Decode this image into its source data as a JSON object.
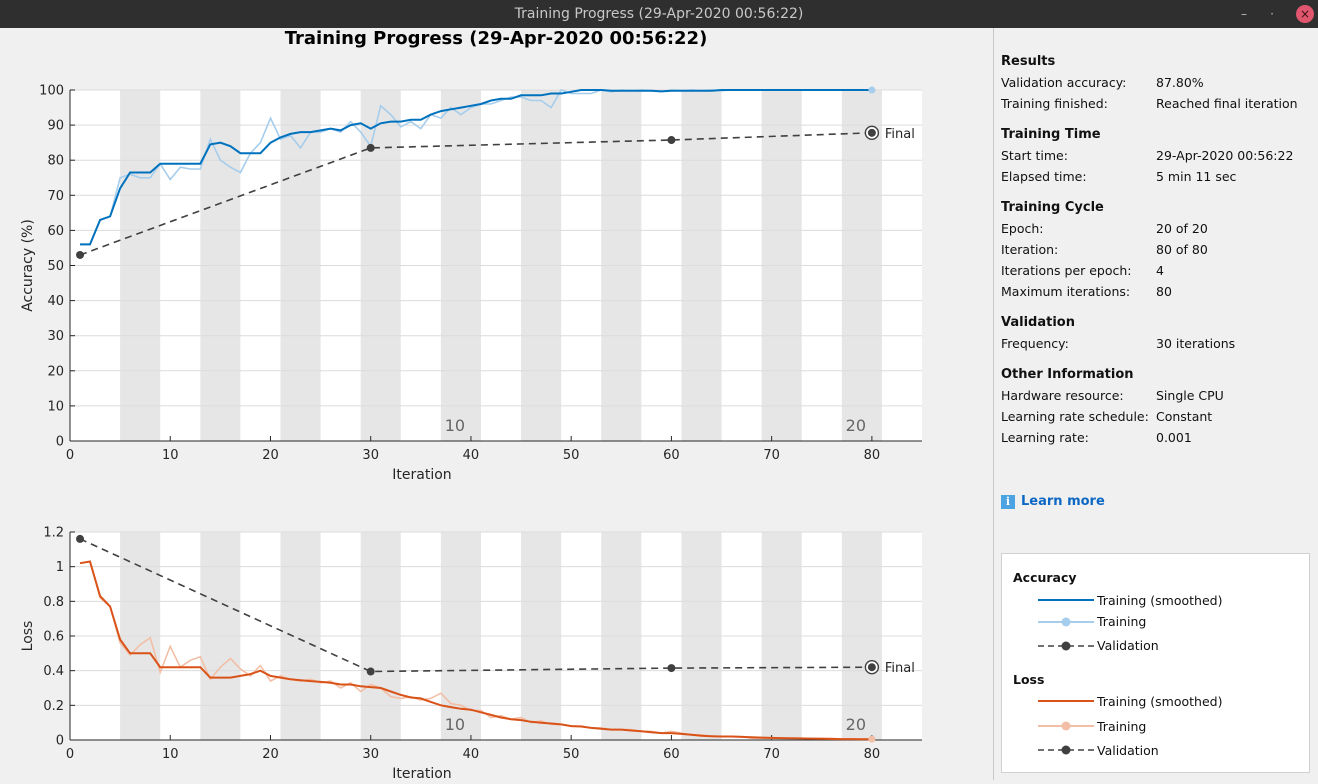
{
  "window": {
    "title": "Training Progress (29-Apr-2020 00:56:22)",
    "controls": {
      "minimize": "–",
      "maximize": "·",
      "close": "×"
    }
  },
  "figure_title": "Training Progress (29-Apr-2020 00:56:22)",
  "colors": {
    "accuracy_smoothed": "#0072bd",
    "accuracy_training": "#a6cdec",
    "loss_smoothed": "#d95319",
    "loss_training": "#f2bfa6",
    "validation": "#404040",
    "epoch_band": "#e6e6e6",
    "learn_more": "#0d67c4"
  },
  "chart_data": [
    {
      "type": "line",
      "name": "accuracy",
      "xlabel": "Iteration",
      "ylabel": "Accuracy (%)",
      "xlim": [
        0,
        85
      ],
      "ylim": [
        0,
        100
      ],
      "xticks": [
        0,
        10,
        20,
        30,
        40,
        50,
        60,
        70,
        80
      ],
      "yticks": [
        0,
        10,
        20,
        30,
        40,
        50,
        60,
        70,
        80,
        90,
        100
      ],
      "grid": true,
      "epoch_bands": [
        [
          5,
          9
        ],
        [
          13,
          17
        ],
        [
          21,
          25
        ],
        [
          29,
          33
        ],
        [
          37,
          41
        ],
        [
          45,
          49
        ],
        [
          53,
          57
        ],
        [
          61,
          65
        ],
        [
          69,
          73
        ],
        [
          77,
          81
        ]
      ],
      "epoch_labels": [
        {
          "x": 38,
          "text": "10"
        },
        {
          "x": 78,
          "text": "20"
        }
      ],
      "final_label": "Final",
      "series": [
        {
          "name": "Training (smoothed)",
          "x": [
            1,
            2,
            3,
            4,
            5,
            6,
            7,
            8,
            9,
            10,
            11,
            12,
            13,
            14,
            15,
            16,
            17,
            18,
            19,
            20,
            21,
            22,
            23,
            24,
            25,
            26,
            27,
            28,
            29,
            30,
            31,
            32,
            33,
            34,
            35,
            36,
            37,
            38,
            39,
            40,
            41,
            42,
            43,
            44,
            45,
            46,
            47,
            48,
            49,
            50,
            51,
            52,
            53,
            54,
            55,
            56,
            57,
            58,
            59,
            60,
            61,
            62,
            63,
            64,
            65,
            66,
            67,
            68,
            69,
            70,
            71,
            72,
            73,
            74,
            75,
            76,
            77,
            78,
            79,
            80
          ],
          "y": [
            56,
            56,
            63,
            64,
            72,
            76.5,
            76.5,
            76.5,
            79,
            79,
            79,
            79,
            79,
            84.5,
            85,
            84,
            82,
            82,
            82,
            85,
            86.5,
            87.5,
            88,
            88,
            88.5,
            89,
            88.5,
            90,
            90.5,
            89,
            90.5,
            91,
            91,
            91.5,
            91.5,
            93,
            94,
            94.5,
            95,
            95.5,
            96,
            97,
            97.5,
            97.5,
            98.5,
            98.5,
            98.5,
            99,
            99,
            99.5,
            100,
            100,
            100,
            99.8,
            99.8,
            99.8,
            99.8,
            99.8,
            99.6,
            99.8,
            99.8,
            99.8,
            99.8,
            99.8,
            100,
            100,
            100,
            100,
            100,
            100,
            100,
            100,
            100,
            100,
            100,
            100,
            100,
            100,
            100,
            100
          ]
        },
        {
          "name": "Training",
          "x": [
            1,
            2,
            3,
            4,
            5,
            6,
            7,
            8,
            9,
            10,
            11,
            12,
            13,
            14,
            15,
            16,
            17,
            18,
            19,
            20,
            21,
            22,
            23,
            24,
            25,
            26,
            27,
            28,
            29,
            30,
            31,
            32,
            33,
            34,
            35,
            36,
            37,
            38,
            39,
            40,
            41,
            42,
            43,
            44,
            45,
            46,
            47,
            48,
            49,
            50,
            51,
            52,
            53,
            54,
            55,
            56,
            57,
            58,
            59,
            60,
            61,
            62,
            63,
            64,
            65,
            66,
            67,
            68,
            69,
            70,
            71,
            72,
            73,
            74,
            75,
            76,
            77,
            78,
            79,
            80
          ],
          "y": [
            56,
            56,
            63,
            64,
            75,
            76,
            75,
            75,
            79,
            74.5,
            78,
            77.5,
            77.5,
            86,
            80,
            78,
            76.5,
            82,
            85,
            92,
            86,
            87,
            83.5,
            88,
            88,
            89,
            88,
            91,
            88,
            84,
            95.5,
            93,
            89.5,
            91,
            89,
            93,
            92,
            95,
            93,
            95,
            96,
            96,
            97,
            98,
            98,
            97,
            97,
            95,
            100,
            99,
            99,
            99,
            100,
            99.5,
            100,
            99.8,
            100,
            99.8,
            99.6,
            100,
            99.8,
            100,
            99.8,
            100,
            99.8,
            100,
            100,
            100,
            100,
            100,
            100,
            100,
            100,
            100,
            100,
            100,
            100,
            100,
            100,
            100
          ]
        },
        {
          "name": "Validation",
          "x": [
            1,
            30,
            60,
            80
          ],
          "y": [
            53,
            83.5,
            85.75,
            87.8
          ]
        }
      ]
    },
    {
      "type": "line",
      "name": "loss",
      "xlabel": "Iteration",
      "ylabel": "Loss",
      "xlim": [
        0,
        85
      ],
      "ylim": [
        0,
        1.2
      ],
      "xticks": [
        0,
        10,
        20,
        30,
        40,
        50,
        60,
        70,
        80
      ],
      "yticks": [
        "0",
        "0.2",
        "0.4",
        "0.6",
        "0.8",
        "1",
        "1.2"
      ],
      "grid": true,
      "epoch_bands": [
        [
          5,
          9
        ],
        [
          13,
          17
        ],
        [
          21,
          25
        ],
        [
          29,
          33
        ],
        [
          37,
          41
        ],
        [
          45,
          49
        ],
        [
          53,
          57
        ],
        [
          61,
          65
        ],
        [
          69,
          73
        ],
        [
          77,
          81
        ]
      ],
      "epoch_labels": [
        {
          "x": 38,
          "text": "10"
        },
        {
          "x": 78,
          "text": "20"
        }
      ],
      "final_label": "Final",
      "series": [
        {
          "name": "Training (smoothed)",
          "x": [
            1,
            2,
            3,
            4,
            5,
            6,
            7,
            8,
            9,
            10,
            11,
            12,
            13,
            14,
            15,
            16,
            17,
            18,
            19,
            20,
            21,
            22,
            23,
            24,
            25,
            26,
            27,
            28,
            29,
            30,
            31,
            32,
            33,
            34,
            35,
            36,
            37,
            38,
            39,
            40,
            41,
            42,
            43,
            44,
            45,
            46,
            47,
            48,
            49,
            50,
            51,
            52,
            53,
            54,
            55,
            56,
            57,
            58,
            59,
            60,
            61,
            62,
            63,
            64,
            65,
            66,
            67,
            68,
            69,
            70,
            71,
            72,
            73,
            74,
            75,
            76,
            77,
            78,
            79,
            80
          ],
          "y": [
            1.02,
            1.03,
            0.83,
            0.77,
            0.58,
            0.5,
            0.5,
            0.5,
            0.42,
            0.42,
            0.42,
            0.42,
            0.42,
            0.36,
            0.36,
            0.36,
            0.37,
            0.38,
            0.4,
            0.37,
            0.36,
            0.35,
            0.345,
            0.34,
            0.335,
            0.33,
            0.32,
            0.32,
            0.31,
            0.305,
            0.3,
            0.28,
            0.26,
            0.245,
            0.24,
            0.22,
            0.2,
            0.19,
            0.18,
            0.175,
            0.16,
            0.145,
            0.13,
            0.12,
            0.115,
            0.105,
            0.1,
            0.095,
            0.09,
            0.08,
            0.078,
            0.07,
            0.065,
            0.06,
            0.06,
            0.055,
            0.05,
            0.045,
            0.04,
            0.04,
            0.035,
            0.03,
            0.025,
            0.022,
            0.02,
            0.02,
            0.018,
            0.016,
            0.014,
            0.012,
            0.011,
            0.01,
            0.009,
            0.008,
            0.007,
            0.006,
            0.005,
            0.005,
            0.004,
            0.004
          ]
        },
        {
          "name": "Training",
          "x": [
            1,
            2,
            3,
            4,
            5,
            6,
            7,
            8,
            9,
            10,
            11,
            12,
            13,
            14,
            15,
            16,
            17,
            18,
            19,
            20,
            21,
            22,
            23,
            24,
            25,
            26,
            27,
            28,
            29,
            30,
            31,
            32,
            33,
            34,
            35,
            36,
            37,
            38,
            39,
            40,
            41,
            42,
            43,
            44,
            45,
            46,
            47,
            48,
            49,
            50,
            51,
            52,
            53,
            54,
            55,
            56,
            57,
            58,
            59,
            60,
            61,
            62,
            63,
            64,
            65,
            66,
            67,
            68,
            69,
            70,
            71,
            72,
            73,
            74,
            75,
            76,
            77,
            78,
            79,
            80
          ],
          "y": [
            1.02,
            1.03,
            0.82,
            0.77,
            0.56,
            0.49,
            0.55,
            0.59,
            0.39,
            0.54,
            0.42,
            0.46,
            0.48,
            0.35,
            0.42,
            0.47,
            0.41,
            0.37,
            0.43,
            0.34,
            0.37,
            0.35,
            0.34,
            0.35,
            0.33,
            0.34,
            0.3,
            0.33,
            0.28,
            0.32,
            0.3,
            0.25,
            0.24,
            0.25,
            0.23,
            0.24,
            0.27,
            0.21,
            0.2,
            0.17,
            0.17,
            0.13,
            0.14,
            0.12,
            0.13,
            0.1,
            0.11,
            0.09,
            0.09,
            0.08,
            0.08,
            0.07,
            0.07,
            0.06,
            0.06,
            0.06,
            0.05,
            0.05,
            0.04,
            0.05,
            0.04,
            0.03,
            0.03,
            0.02,
            0.02,
            0.02,
            0.02,
            0.01,
            0.01,
            0.01,
            0.01,
            0.01,
            0.01,
            0.01,
            0.01,
            0.01,
            0.005,
            0.005,
            0.005,
            0.005
          ]
        },
        {
          "name": "Validation",
          "x": [
            1,
            30,
            60,
            80
          ],
          "y": [
            1.16,
            0.395,
            0.415,
            0.42
          ]
        }
      ]
    }
  ],
  "side_panel": {
    "sections": [
      {
        "title": "Results",
        "rows": [
          {
            "label": "Validation accuracy:",
            "value": "87.80%"
          },
          {
            "label": "Training finished:",
            "value": "Reached final iteration"
          }
        ]
      },
      {
        "title": "Training Time",
        "rows": [
          {
            "label": "Start time:",
            "value": "29-Apr-2020 00:56:22"
          },
          {
            "label": "Elapsed time:",
            "value": "5 min 11 sec"
          }
        ]
      },
      {
        "title": "Training Cycle",
        "rows": [
          {
            "label": "Epoch:",
            "value": "20 of 20"
          },
          {
            "label": "Iteration:",
            "value": "80 of 80"
          },
          {
            "label": "Iterations per epoch:",
            "value": "4"
          },
          {
            "label": "Maximum iterations:",
            "value": "80"
          }
        ]
      },
      {
        "title": "Validation",
        "rows": [
          {
            "label": "Frequency:",
            "value": "30 iterations"
          }
        ]
      },
      {
        "title": "Other Information",
        "rows": [
          {
            "label": "Hardware resource:",
            "value": "Single CPU"
          },
          {
            "label": "Learning rate schedule:",
            "value": "Constant"
          },
          {
            "label": "Learning rate:",
            "value": "0.001"
          }
        ]
      }
    ],
    "learn_more": "Learn more",
    "legend": {
      "accuracy_title": "Accuracy",
      "loss_title": "Loss",
      "items": {
        "smoothed": "Training (smoothed)",
        "training": "Training",
        "validation": "Validation"
      }
    }
  }
}
